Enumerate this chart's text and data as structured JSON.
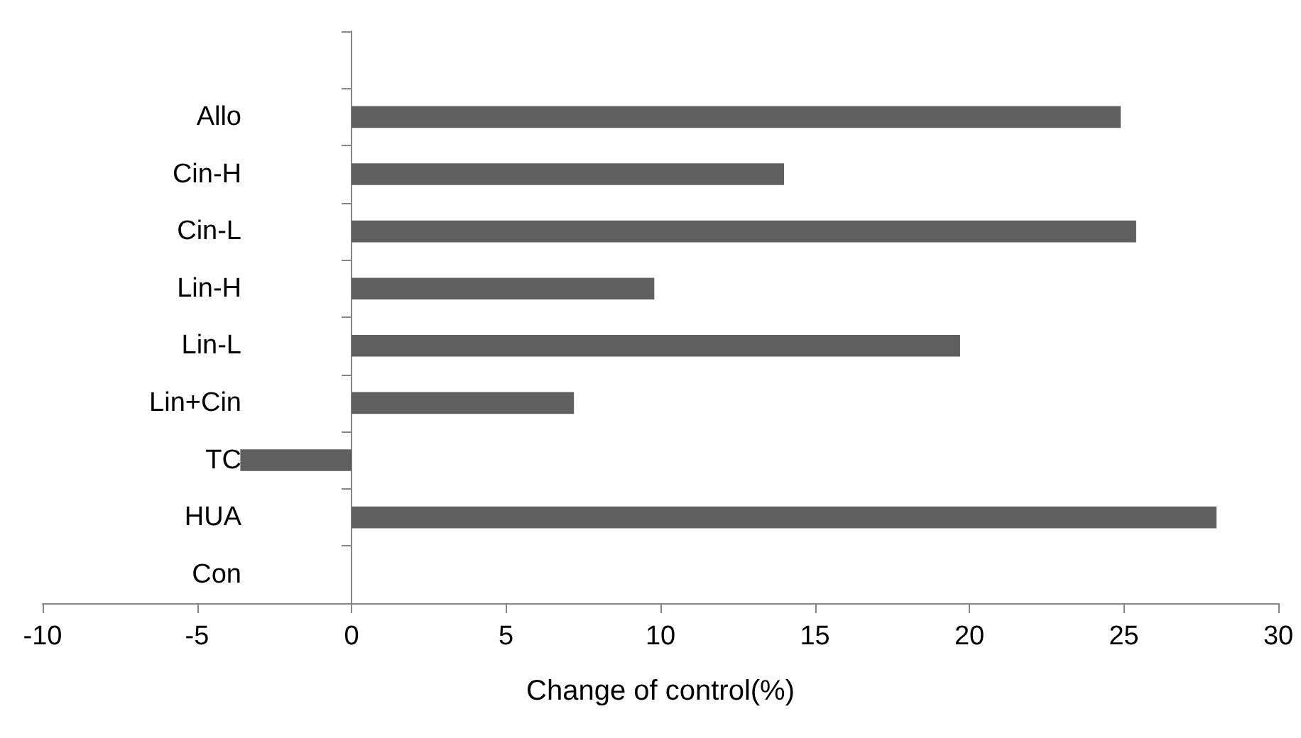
{
  "chart_data": {
    "type": "bar",
    "orientation": "horizontal",
    "xlabel": "Change of control(%)",
    "categories": [
      null,
      "Allo",
      "Cin-H",
      "Cin-L",
      "Lin-H",
      "Lin-L",
      "Lin+Cin",
      "TC",
      "HUA",
      "Con"
    ],
    "values": [
      null,
      24.9,
      14.0,
      25.4,
      9.8,
      19.7,
      7.2,
      -3.6,
      28.0,
      0
    ],
    "color": "#5f5f5f",
    "xlim": [
      -10,
      30
    ],
    "xticks": [
      -10,
      -5,
      0,
      5,
      10,
      15,
      20,
      25,
      30
    ]
  }
}
